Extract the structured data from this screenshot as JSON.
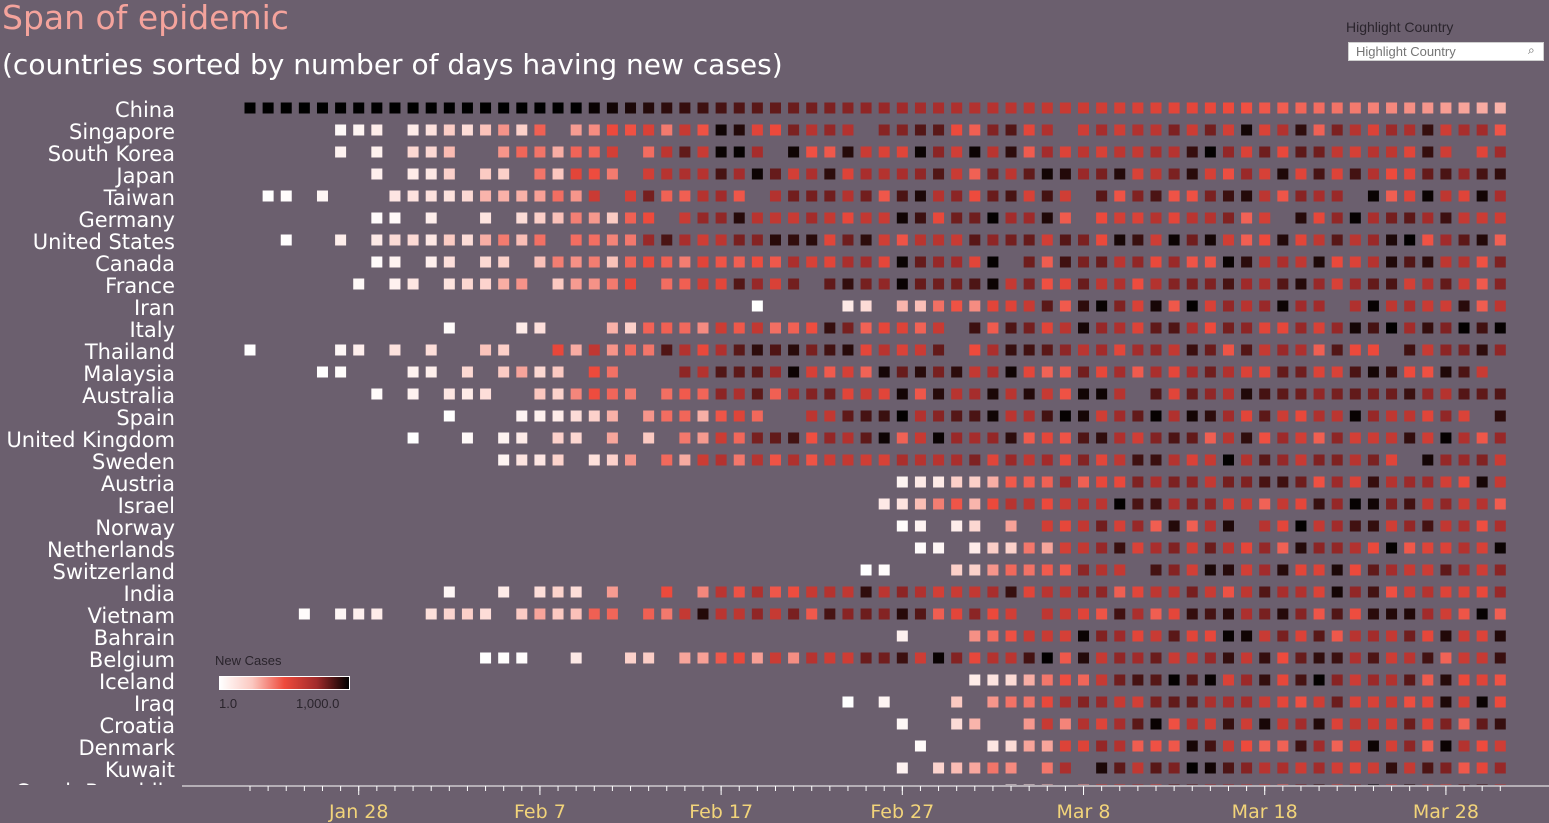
{
  "header": {
    "title": "Span of epidemic",
    "subtitle": "(countries sorted by number of days having new cases)"
  },
  "filter": {
    "label": "Highlight Country",
    "placeholder": "Highlight Country",
    "icon": "search-icon"
  },
  "legend": {
    "title": "New Cases",
    "min_label": "1.0",
    "max_label": "1,000.0",
    "colors": [
      "#ffffff",
      "#fbc8c0",
      "#ee4a3c",
      "#a12b2b",
      "#000000"
    ]
  },
  "colors": {
    "background": "#6b5f6e",
    "title": "#f4a39c",
    "axis_text": "#f2d47a",
    "axis_line": "#ffffff"
  },
  "chart_data": {
    "type": "heatmap",
    "title": "Span of epidemic",
    "subtitle": "(countries sorted by number of days having new cases)",
    "x_ticks": [
      "Jan 28",
      "Feb 7",
      "Feb 17",
      "Feb 27",
      "Mar 8",
      "Mar 18",
      "Mar 28"
    ],
    "x_range": [
      "Jan 22",
      "Mar 31"
    ],
    "color_scale": {
      "title": "New Cases",
      "min": 1.0,
      "max": 1000.0,
      "type": "log"
    },
    "countries": [
      "China",
      "Singapore",
      "South Korea",
      "Japan",
      "Taiwan",
      "Germany",
      "United States",
      "Canada",
      "France",
      "Iran",
      "Italy",
      "Thailand",
      "Malaysia",
      "Australia",
      "Spain",
      "United Kingdom",
      "Sweden",
      "Austria",
      "Israel",
      "Norway",
      "Netherlands",
      "Switzerland",
      "India",
      "Vietnam",
      "Bahrain",
      "Belgium",
      "Iceland",
      "Iraq",
      "Croatia",
      "Denmark",
      "Kuwait",
      "Czech Republic"
    ],
    "first_case_date": {
      "China": "Jan 22",
      "Singapore": "Jan 23",
      "South Korea": "Jan 22",
      "Japan": "Jan 22",
      "Taiwan": "Jan 22",
      "Germany": "Jan 27",
      "United States": "Jan 22",
      "Canada": "Jan 26",
      "France": "Jan 24",
      "Iran": "Feb 19",
      "Italy": "Jan 31",
      "Thailand": "Jan 22",
      "Malaysia": "Jan 25",
      "Australia": "Jan 26",
      "Spain": "Feb 1",
      "United Kingdom": "Jan 31",
      "Sweden": "Jan 31",
      "Austria": "Feb 25",
      "Israel": "Feb 21",
      "Norway": "Feb 26",
      "Netherlands": "Feb 27",
      "Switzerland": "Feb 25",
      "India": "Jan 30",
      "Vietnam": "Jan 23",
      "Bahrain": "Feb 24",
      "Belgium": "Feb 4",
      "Iceland": "Feb 28",
      "Iraq": "Feb 24",
      "Croatia": "Feb 25",
      "Denmark": "Feb 27",
      "Kuwait": "Feb 24",
      "Czech Republic": "Mar 1"
    }
  }
}
